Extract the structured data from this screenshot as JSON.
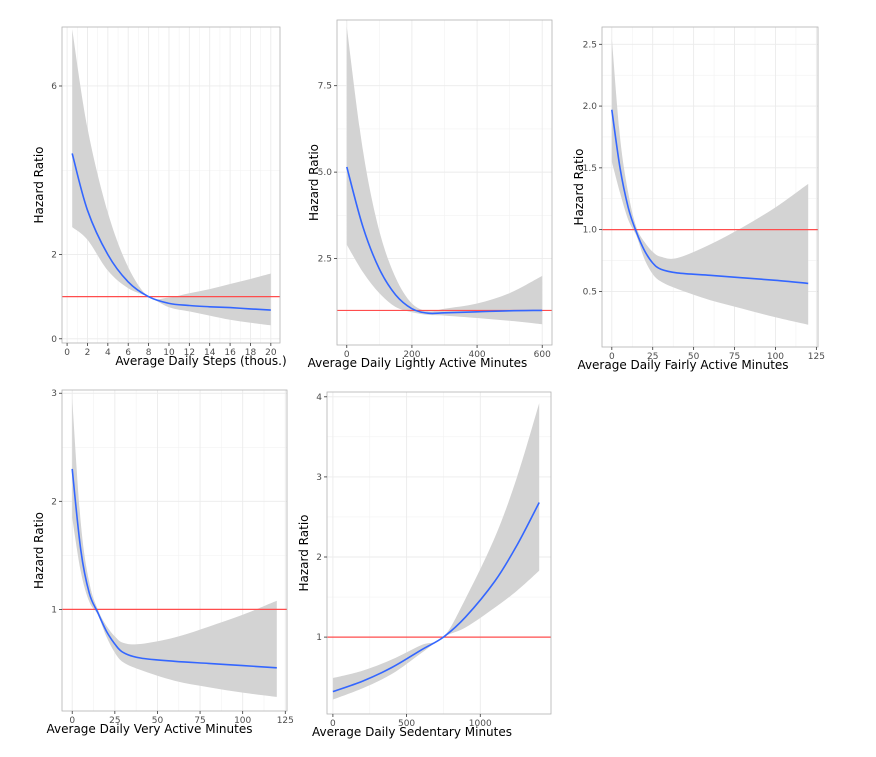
{
  "colors": {
    "curve": "#3366ff",
    "ribbon": "#d3d3d3",
    "reference": "#ff4d4d",
    "grid": "#ebebeb",
    "border": "#b3b3b3"
  },
  "chart_data": [
    {
      "id": "steps",
      "type": "line",
      "title": "",
      "xlabel": "Average Daily Steps (thous.)",
      "ylabel": "Hazard Ratio",
      "xlim": [
        -0.5,
        20.9
      ],
      "ylim": [
        -0.1,
        7.4
      ],
      "xticks": [
        0,
        2,
        4,
        6,
        8,
        10,
        12,
        14,
        16,
        18,
        20
      ],
      "xtick_labels": [
        "0",
        "2",
        "4",
        "6",
        "8",
        "10",
        "12",
        "14",
        "16",
        "18",
        "20"
      ],
      "yticks": [
        0,
        2,
        6
      ],
      "ytick_labels": [
        "0",
        "2",
        "6"
      ],
      "reference_y": 1,
      "x": [
        0.5,
        2,
        4,
        6,
        8,
        10,
        12,
        14,
        16,
        18,
        20
      ],
      "series": [
        {
          "name": "hazard_ratio",
          "values": [
            4.4,
            3.05,
            2.0,
            1.35,
            1.0,
            0.84,
            0.79,
            0.76,
            0.74,
            0.71,
            0.68
          ]
        },
        {
          "name": "upper_ci",
          "values": [
            7.35,
            5.0,
            3.0,
            1.7,
            1.0,
            0.98,
            1.08,
            1.18,
            1.3,
            1.42,
            1.55
          ]
        },
        {
          "name": "lower_ci",
          "values": [
            2.65,
            2.35,
            1.62,
            1.2,
            1.0,
            0.75,
            0.65,
            0.55,
            0.45,
            0.38,
            0.32
          ]
        }
      ]
    },
    {
      "id": "light",
      "type": "line",
      "title": "",
      "xlabel": "Average Daily Lightly Active Minutes",
      "ylabel": "Hazard Ratio",
      "xlim": [
        -30,
        630
      ],
      "ylim": [
        0.0,
        9.4
      ],
      "xticks": [
        0,
        200,
        400,
        600
      ],
      "xtick_labels": [
        "0",
        "200",
        "400",
        "600"
      ],
      "yticks": [
        2.5,
        5.0,
        7.5
      ],
      "ytick_labels": [
        "2.5",
        "5.0",
        "7.5"
      ],
      "reference_y": 1,
      "x": [
        0,
        50,
        100,
        150,
        200,
        250,
        300,
        400,
        500,
        600
      ],
      "series": [
        {
          "name": "hazard_ratio",
          "values": [
            5.15,
            3.4,
            2.2,
            1.45,
            1.05,
            0.92,
            0.93,
            0.96,
            0.99,
            1.0
          ]
        },
        {
          "name": "upper_ci",
          "values": [
            9.2,
            5.6,
            3.3,
            1.95,
            1.2,
            0.98,
            1.05,
            1.2,
            1.5,
            2.0
          ]
        },
        {
          "name": "lower_ci",
          "values": [
            2.9,
            2.1,
            1.5,
            1.1,
            0.95,
            0.87,
            0.85,
            0.78,
            0.7,
            0.6
          ]
        }
      ]
    },
    {
      "id": "fairly",
      "type": "line",
      "title": "",
      "xlabel": "Average Daily Fairly Active Minutes",
      "ylabel": "Hazard Ratio",
      "xlim": [
        -6,
        126
      ],
      "ylim": [
        0.05,
        2.64
      ],
      "xticks": [
        0,
        25,
        50,
        75,
        100,
        125
      ],
      "xtick_labels": [
        "0",
        "25",
        "50",
        "75",
        "100",
        "125"
      ],
      "yticks": [
        0.5,
        1.0,
        1.5,
        2.0,
        2.5
      ],
      "ytick_labels": [
        "0.5",
        "1.0",
        "1.5",
        "2.0",
        "2.5"
      ],
      "reference_y": 1,
      "x": [
        0,
        5,
        10,
        15,
        20,
        25,
        30,
        40,
        60,
        80,
        100,
        120
      ],
      "series": [
        {
          "name": "hazard_ratio",
          "values": [
            1.97,
            1.5,
            1.18,
            0.98,
            0.83,
            0.73,
            0.68,
            0.65,
            0.63,
            0.61,
            0.59,
            0.565
          ]
        },
        {
          "name": "upper_ci",
          "values": [
            2.55,
            1.75,
            1.3,
            1.02,
            0.9,
            0.82,
            0.78,
            0.77,
            0.88,
            1.02,
            1.18,
            1.37
          ]
        },
        {
          "name": "lower_ci",
          "values": [
            1.55,
            1.3,
            1.08,
            0.95,
            0.76,
            0.64,
            0.58,
            0.52,
            0.43,
            0.36,
            0.29,
            0.23
          ]
        }
      ]
    },
    {
      "id": "very",
      "type": "line",
      "title": "",
      "xlabel": "Average Daily Very Active Minutes",
      "ylabel": "Hazard Ratio",
      "xlim": [
        -6,
        126
      ],
      "ylim": [
        0.06,
        3.03
      ],
      "xticks": [
        0,
        25,
        50,
        75,
        100,
        125
      ],
      "xtick_labels": [
        "0",
        "25",
        "50",
        "75",
        "100",
        "125"
      ],
      "yticks": [
        1,
        2,
        3
      ],
      "ytick_labels": [
        "1",
        "2",
        "3"
      ],
      "reference_y": 1,
      "x": [
        0,
        5,
        10,
        15,
        20,
        25,
        30,
        40,
        60,
        80,
        100,
        120
      ],
      "series": [
        {
          "name": "hazard_ratio",
          "values": [
            2.3,
            1.55,
            1.15,
            0.97,
            0.8,
            0.68,
            0.6,
            0.55,
            0.52,
            0.5,
            0.48,
            0.46
          ]
        },
        {
          "name": "upper_ci",
          "values": [
            2.95,
            1.8,
            1.25,
            1.0,
            0.85,
            0.75,
            0.69,
            0.68,
            0.74,
            0.84,
            0.95,
            1.08
          ]
        },
        {
          "name": "lower_ci",
          "values": [
            1.85,
            1.35,
            1.07,
            0.95,
            0.75,
            0.6,
            0.51,
            0.44,
            0.34,
            0.28,
            0.23,
            0.19
          ]
        }
      ]
    },
    {
      "id": "sedentary",
      "type": "line",
      "title": "",
      "xlabel": "Average Daily Sedentary Minutes",
      "ylabel": "Hazard Ratio",
      "xlim": [
        -40,
        1480
      ],
      "ylim": [
        0.04,
        4.06
      ],
      "xticks": [
        0,
        500,
        1000
      ],
      "xtick_labels": [
        "0",
        "500",
        "1000"
      ],
      "yticks": [
        1,
        2,
        3,
        4
      ],
      "ytick_labels": [
        "1",
        "2",
        "3",
        "4"
      ],
      "reference_y": 1,
      "x": [
        0,
        200,
        400,
        600,
        750,
        900,
        1100,
        1250,
        1400
      ],
      "series": [
        {
          "name": "hazard_ratio",
          "values": [
            0.32,
            0.45,
            0.62,
            0.84,
            1.0,
            1.25,
            1.7,
            2.15,
            2.68
          ]
        },
        {
          "name": "upper_ci",
          "values": [
            0.49,
            0.58,
            0.72,
            0.9,
            1.0,
            1.48,
            2.25,
            3.0,
            3.92
          ]
        },
        {
          "name": "lower_ci",
          "values": [
            0.22,
            0.36,
            0.54,
            0.8,
            1.0,
            1.12,
            1.37,
            1.58,
            1.83
          ]
        }
      ]
    }
  ]
}
